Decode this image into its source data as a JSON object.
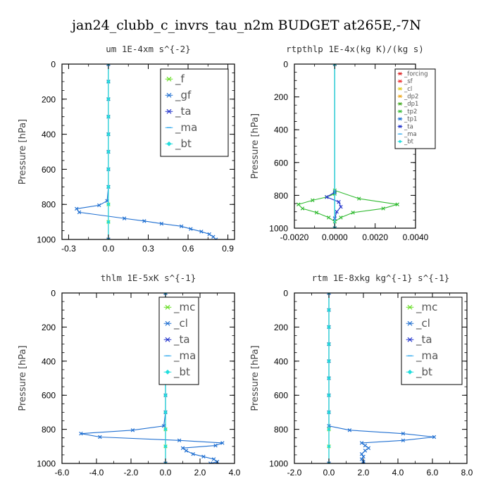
{
  "title": "jan24_clubb_c_invrs_tau_n2m  BUDGET at265E,-7N",
  "chart_data": [
    {
      "type": "line",
      "title": "um   1E-4xm s^{-2}",
      "ylabel": "Pressure [hPa]",
      "xlim": [
        -0.35,
        0.95
      ],
      "ylim": [
        1000,
        0
      ],
      "xticks": [
        -0.3,
        0.0,
        0.3,
        0.6,
        0.9
      ],
      "xtick_labels": [
        "-0.3",
        "0.0",
        "0.3",
        "0.6",
        "0.9"
      ],
      "yticks": [
        0,
        200,
        400,
        600,
        800,
        1000
      ],
      "ytick_labels": [
        "0",
        "200",
        "400",
        "600",
        "800",
        "1000"
      ],
      "legend_position": "top-right",
      "series": [
        {
          "name": "_f",
          "color": "#66dd22",
          "marker": "x",
          "points": [
            [
              0,
              0
            ],
            [
              0,
              100
            ],
            [
              0,
              200
            ],
            [
              0,
              300
            ],
            [
              0,
              400
            ],
            [
              0,
              500
            ],
            [
              0,
              600
            ],
            [
              0,
              700
            ],
            [
              0,
              800
            ],
            [
              0,
              900
            ],
            [
              0,
              1000
            ]
          ]
        },
        {
          "name": "_gf",
          "color": "#1f6fd1",
          "marker": "x",
          "points": [
            [
              0,
              0
            ],
            [
              0,
              100
            ],
            [
              0,
              200
            ],
            [
              0,
              300
            ],
            [
              0,
              400
            ],
            [
              0,
              500
            ],
            [
              0,
              600
            ],
            [
              0,
              700
            ],
            [
              -0.01,
              780
            ],
            [
              -0.07,
              805
            ],
            [
              -0.24,
              825
            ],
            [
              -0.22,
              845
            ],
            [
              0.12,
              880
            ],
            [
              0.27,
              895
            ],
            [
              0.4,
              910
            ],
            [
              0.55,
              925
            ],
            [
              0.62,
              940
            ],
            [
              0.7,
              955
            ],
            [
              0.76,
              970
            ],
            [
              0.79,
              985
            ],
            [
              0.81,
              1000
            ]
          ]
        },
        {
          "name": "_ta",
          "color": "#2233cc",
          "marker": "x",
          "points": [
            [
              0,
              0
            ],
            [
              0,
              1000
            ]
          ]
        },
        {
          "name": "_ma",
          "color": "#33aaee",
          "marker": "dash",
          "points": [
            [
              0,
              0
            ],
            [
              0,
              1000
            ]
          ]
        },
        {
          "name": "_bt",
          "color": "#22dddd",
          "marker": "diamond",
          "points": [
            [
              0,
              0
            ],
            [
              0,
              100
            ],
            [
              0,
              200
            ],
            [
              0,
              300
            ],
            [
              0,
              400
            ],
            [
              0,
              500
            ],
            [
              0,
              600
            ],
            [
              0,
              700
            ],
            [
              0,
              800
            ],
            [
              0,
              900
            ],
            [
              0,
              1000
            ]
          ]
        }
      ]
    },
    {
      "type": "line",
      "title": "rtpthlp   1E-4x(kg K)/(kg s)",
      "ylabel": "Pressure [hPa]",
      "xlim": [
        -0.002,
        0.004
      ],
      "ylim": [
        1000,
        0
      ],
      "xticks": [
        -0.002,
        0.0,
        0.002,
        0.004
      ],
      "xtick_labels": [
        "-0.0020",
        "0.0000",
        "0.0020",
        "0.0040"
      ],
      "yticks": [
        0,
        200,
        400,
        600,
        800,
        1000
      ],
      "ytick_labels": [
        "0",
        "200",
        "400",
        "600",
        "800",
        "1000"
      ],
      "legend_position": "top-right",
      "series": [
        {
          "name": "_forcing",
          "color": "#dd2222",
          "marker": "x",
          "points": [
            [
              0,
              0
            ],
            [
              0,
              1000
            ]
          ]
        },
        {
          "name": "_sf",
          "color": "#ee3333",
          "marker": "x",
          "points": [
            [
              0,
              0
            ],
            [
              0,
              1000
            ]
          ]
        },
        {
          "name": "_cl",
          "color": "#ddcc22",
          "marker": "x",
          "points": [
            [
              0,
              0
            ],
            [
              0,
              1000
            ]
          ]
        },
        {
          "name": "_dp2",
          "color": "#eeaa22",
          "marker": "x",
          "points": [
            [
              0,
              0
            ],
            [
              0,
              1000
            ]
          ]
        },
        {
          "name": "_dp1",
          "color": "#44aa22",
          "marker": "x",
          "points": [
            [
              0,
              0
            ],
            [
              0,
              1000
            ]
          ]
        },
        {
          "name": "_tp2",
          "color": "#33bb33",
          "marker": "x",
          "points": [
            [
              0,
              770
            ],
            [
              0.0012,
              820
            ],
            [
              0.0031,
              855
            ],
            [
              0.0024,
              880
            ],
            [
              0.0009,
              905
            ],
            [
              0.0003,
              935
            ],
            [
              0,
              960
            ],
            [
              -0.0003,
              935
            ],
            [
              -0.0009,
              905
            ],
            [
              -0.0016,
              880
            ],
            [
              -0.0018,
              855
            ],
            [
              -0.0011,
              830
            ],
            [
              -0.0004,
              810
            ],
            [
              0,
              790
            ]
          ]
        },
        {
          "name": "_tp1",
          "color": "#1f6fd1",
          "marker": "x",
          "points": [
            [
              0,
              0
            ],
            [
              0,
              1000
            ]
          ]
        },
        {
          "name": "_ta",
          "color": "#2233cc",
          "marker": "x",
          "points": [
            [
              0,
              780
            ],
            [
              -0.0004,
              810
            ],
            [
              0.0002,
              840
            ],
            [
              0.0003,
              870
            ],
            [
              0.0001,
              900
            ],
            [
              0,
              940
            ]
          ]
        },
        {
          "name": "_ma",
          "color": "#33aaee",
          "marker": "dash",
          "points": [
            [
              0,
              0
            ],
            [
              0,
              1000
            ]
          ]
        },
        {
          "name": "_bt",
          "color": "#22dddd",
          "marker": "diamond",
          "points": [
            [
              0,
              0
            ],
            [
              0,
              1000
            ]
          ]
        }
      ]
    },
    {
      "type": "line",
      "title": "thlm   1E-5xK s^{-1}",
      "ylabel": "Pressure [hPa]",
      "xlim": [
        -6.0,
        4.0
      ],
      "ylim": [
        1000,
        0
      ],
      "xticks": [
        -6,
        -4,
        -2,
        0,
        2,
        4
      ],
      "xtick_labels": [
        "-6.0",
        "-4.0",
        "-2.0",
        "0.0",
        "2.0",
        "4.0"
      ],
      "yticks": [
        0,
        200,
        400,
        600,
        800,
        1000
      ],
      "ytick_labels": [
        "0",
        "200",
        "400",
        "600",
        "800",
        "1000"
      ],
      "legend_position": "top-right",
      "series": [
        {
          "name": "_mc",
          "color": "#66dd22",
          "marker": "x",
          "points": [
            [
              0,
              0
            ],
            [
              0,
              100
            ],
            [
              0,
              200
            ],
            [
              0,
              300
            ],
            [
              0,
              400
            ],
            [
              0,
              500
            ],
            [
              0,
              600
            ],
            [
              0,
              700
            ],
            [
              0,
              800
            ],
            [
              0,
              900
            ],
            [
              0,
              1000
            ]
          ]
        },
        {
          "name": "_cl",
          "color": "#1f6fd1",
          "marker": "x",
          "points": [
            [
              0,
              0
            ],
            [
              0,
              100
            ],
            [
              0,
              200
            ],
            [
              0,
              300
            ],
            [
              0,
              400
            ],
            [
              0,
              500
            ],
            [
              0,
              600
            ],
            [
              0,
              700
            ],
            [
              -0.1,
              780
            ],
            [
              -1.9,
              805
            ],
            [
              -4.9,
              825
            ],
            [
              -3.8,
              845
            ],
            [
              0.8,
              865
            ],
            [
              3.3,
              880
            ],
            [
              2.9,
              895
            ],
            [
              1.0,
              910
            ],
            [
              1.2,
              925
            ],
            [
              1.6,
              945
            ],
            [
              2.2,
              960
            ],
            [
              2.8,
              975
            ],
            [
              3.0,
              990
            ],
            [
              2.6,
              1000
            ]
          ]
        },
        {
          "name": "_ta",
          "color": "#2233cc",
          "marker": "x",
          "points": [
            [
              0,
              0
            ],
            [
              0,
              1000
            ]
          ]
        },
        {
          "name": "_ma",
          "color": "#33aaee",
          "marker": "dash",
          "points": [
            [
              0,
              0
            ],
            [
              0,
              1000
            ]
          ]
        },
        {
          "name": "_bt",
          "color": "#22dddd",
          "marker": "diamond",
          "points": [
            [
              0,
              0
            ],
            [
              0,
              100
            ],
            [
              0,
              200
            ],
            [
              0,
              300
            ],
            [
              0,
              400
            ],
            [
              0,
              500
            ],
            [
              0,
              600
            ],
            [
              0,
              700
            ],
            [
              0,
              800
            ],
            [
              0,
              900
            ],
            [
              0,
              1000
            ]
          ]
        }
      ]
    },
    {
      "type": "line",
      "title": "rtm   1E-8xkg kg^{-1} s^{-1}",
      "ylabel": "Pressure [hPa]",
      "xlim": [
        -2.0,
        8.0
      ],
      "ylim": [
        1000,
        0
      ],
      "xticks": [
        -2,
        0,
        2,
        4,
        6,
        8
      ],
      "xtick_labels": [
        "-2.0",
        "0.0",
        "2.0",
        "4.0",
        "6.0",
        "8.0"
      ],
      "yticks": [
        0,
        200,
        400,
        600,
        800,
        1000
      ],
      "ytick_labels": [
        "0",
        "200",
        "400",
        "600",
        "800",
        "1000"
      ],
      "legend_position": "top-right",
      "series": [
        {
          "name": "_mc",
          "color": "#66dd22",
          "marker": "x",
          "points": [
            [
              0,
              0
            ],
            [
              0,
              100
            ],
            [
              0,
              200
            ],
            [
              0,
              300
            ],
            [
              0,
              400
            ],
            [
              0,
              500
            ],
            [
              0,
              600
            ],
            [
              0,
              700
            ],
            [
              0,
              800
            ],
            [
              0,
              900
            ],
            [
              0,
              1000
            ]
          ]
        },
        {
          "name": "_cl",
          "color": "#1f6fd1",
          "marker": "x",
          "points": [
            [
              0,
              0
            ],
            [
              0,
              100
            ],
            [
              0,
              200
            ],
            [
              0,
              300
            ],
            [
              0,
              400
            ],
            [
              0,
              500
            ],
            [
              0,
              600
            ],
            [
              0,
              700
            ],
            [
              0,
              780
            ],
            [
              1.2,
              805
            ],
            [
              4.3,
              825
            ],
            [
              6.1,
              845
            ],
            [
              4.3,
              865
            ],
            [
              1.9,
              880
            ],
            [
              2.1,
              895
            ],
            [
              2.3,
              910
            ],
            [
              2.1,
              925
            ],
            [
              1.9,
              945
            ],
            [
              2.0,
              960
            ],
            [
              1.9,
              975
            ],
            [
              2.0,
              990
            ],
            [
              2.0,
              1000
            ]
          ]
        },
        {
          "name": "_ta",
          "color": "#2233cc",
          "marker": "x",
          "points": [
            [
              0,
              0
            ],
            [
              0,
              1000
            ]
          ]
        },
        {
          "name": "_ma",
          "color": "#33aaee",
          "marker": "dash",
          "points": [
            [
              0,
              0
            ],
            [
              0,
              1000
            ]
          ]
        },
        {
          "name": "_bt",
          "color": "#22dddd",
          "marker": "diamond",
          "points": [
            [
              0,
              0
            ],
            [
              0,
              100
            ],
            [
              0,
              200
            ],
            [
              0,
              300
            ],
            [
              0,
              400
            ],
            [
              0,
              500
            ],
            [
              0,
              600
            ],
            [
              0,
              700
            ],
            [
              0,
              800
            ],
            [
              0,
              900
            ],
            [
              0,
              1000
            ]
          ]
        }
      ]
    }
  ]
}
